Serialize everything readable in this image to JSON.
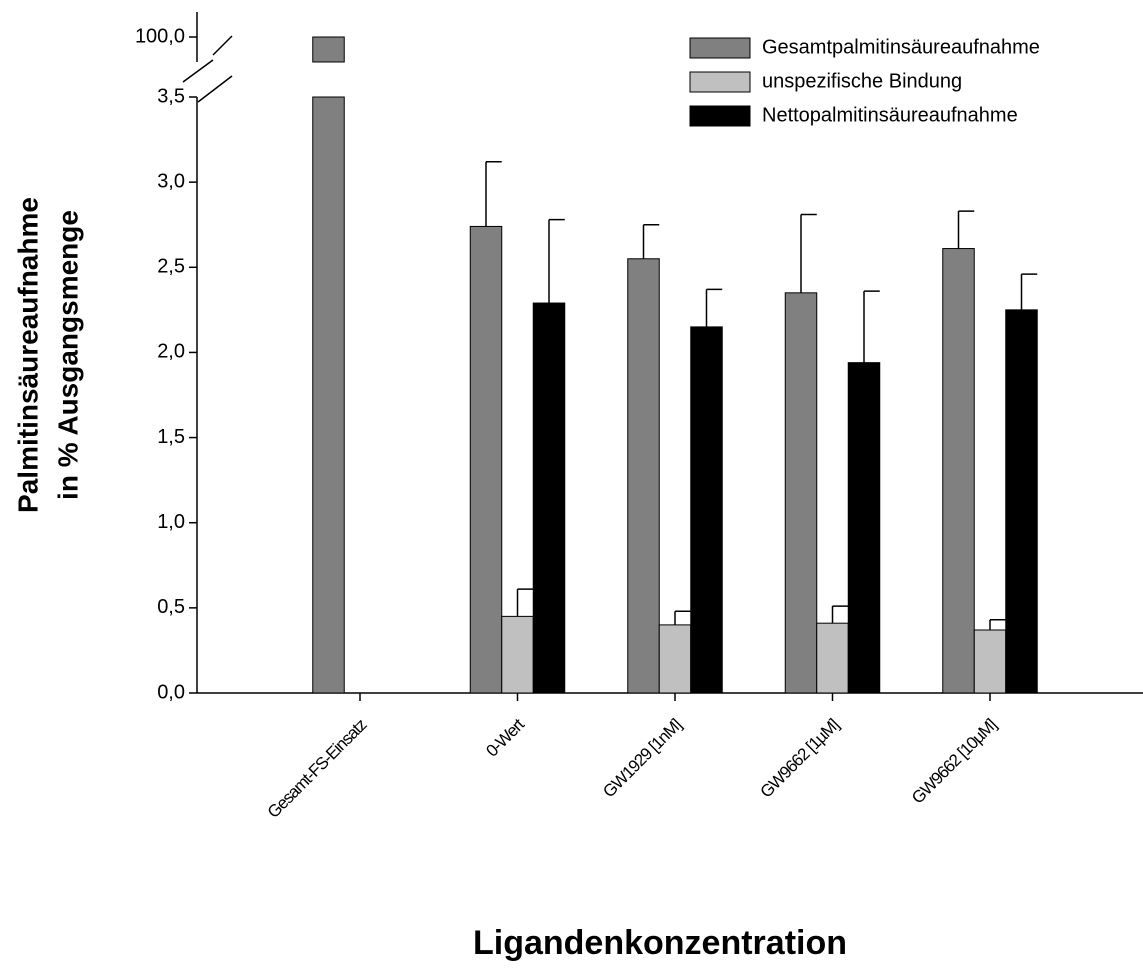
{
  "chart_data": {
    "type": "bar",
    "x_label": "Ligandenkonzentration",
    "y_label": [
      "Palmitinsäureaufnahme",
      "in % Ausgangsmenge"
    ],
    "categories": [
      "Gesamt-FS-Einsatz",
      "0-Wert",
      "GW1929 [1nM]",
      "GW9662 [1µM]",
      "GW9662 [10µM]"
    ],
    "series": [
      {
        "name": "Gesamtpalmitinsäureaufnahme",
        "color": "#808080",
        "values": [
          100,
          2.74,
          2.55,
          2.35,
          2.61
        ],
        "errors": [
          null,
          0.38,
          0.2,
          0.46,
          0.22
        ]
      },
      {
        "name": "unspezifische Bindung",
        "color": "#c0c0c0",
        "values": [
          null,
          0.45,
          0.4,
          0.41,
          0.37
        ],
        "errors": [
          null,
          0.16,
          0.08,
          0.1,
          0.06
        ]
      },
      {
        "name": "Nettopalmitinsäureaufnahme",
        "color": "#000000",
        "values": [
          null,
          2.29,
          2.15,
          1.94,
          2.25
        ],
        "errors": [
          null,
          0.49,
          0.22,
          0.42,
          0.21
        ]
      }
    ],
    "ylim": [
      0,
      3.5
    ],
    "yticks": [
      {
        "value": 0,
        "label": "0,0"
      },
      {
        "value": 0.5,
        "label": "0,5"
      },
      {
        "value": 1,
        "label": "1,0"
      },
      {
        "value": 1.5,
        "label": "1,5"
      },
      {
        "value": 2,
        "label": "2,0"
      },
      {
        "value": 2.5,
        "label": "2,5"
      },
      {
        "value": 3,
        "label": "3,0"
      },
      {
        "value": 3.5,
        "label": "3,5"
      }
    ],
    "y_break": {
      "ylim": [
        99,
        101
      ],
      "yticks": [
        {
          "value": 100,
          "label": "100,0"
        }
      ]
    },
    "legend": "upper right"
  }
}
